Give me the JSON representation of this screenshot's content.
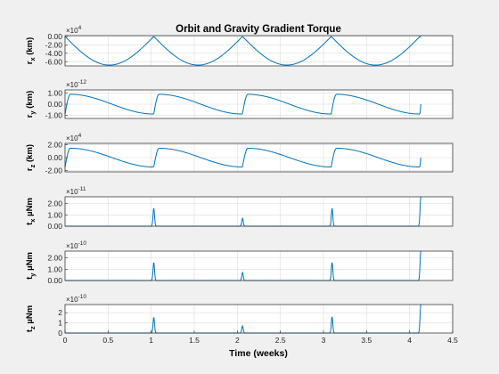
{
  "chart_data": {
    "title": "Orbit and Gravity Gradient Torque",
    "xlabel": "Time (weeks)",
    "x_ticks": [
      "0",
      "0.5",
      "1",
      "1.5",
      "2",
      "2.5",
      "3",
      "3.5",
      "4",
      "4.5"
    ],
    "xlim": [
      0,
      4.5
    ],
    "series_color": "#0072BD",
    "grid_color": "#dcdcdc",
    "subplots": [
      {
        "id": "rx",
        "type": "line",
        "ylabel_main": "r",
        "ylabel_sub": "x",
        "ylabel_unit": " (km)",
        "exponent_base": "×10",
        "exponent_power": "4",
        "ylim": [
          -7.0,
          0.2
        ],
        "yticks": [
          0,
          -2,
          -4,
          -6
        ],
        "ytick_labels": [
          "0.00",
          "-2.00",
          "-4.00",
          "-6.00"
        ],
        "curve": {
          "kind": "arcs",
          "period": 1.03,
          "xend": 4.13,
          "min": -6.8,
          "max": 0
        }
      },
      {
        "id": "ry",
        "type": "line",
        "ylabel_main": "r",
        "ylabel_sub": "y",
        "ylabel_unit": " (km)",
        "exponent_base": "×10",
        "exponent_power": "-12",
        "ylim": [
          -1.3,
          1.3
        ],
        "yticks": [
          1,
          0,
          -1
        ],
        "ytick_labels": [
          "1.00",
          "0.00",
          "-1.00"
        ],
        "curve": {
          "kind": "sawtooth",
          "period": 1.03,
          "xend": 4.13,
          "peak": 0.9,
          "trough": -0.9,
          "rise": 0.06,
          "end_value": 0
        }
      },
      {
        "id": "rz",
        "type": "line",
        "ylabel_main": "r",
        "ylabel_sub": "z",
        "ylabel_unit": " (km)",
        "exponent_base": "×10",
        "exponent_power": "4",
        "ylim": [
          -2.2,
          2.2
        ],
        "yticks": [
          2,
          0,
          -2
        ],
        "ytick_labels": [
          "2.00",
          "0.00",
          "-2.00"
        ],
        "curve": {
          "kind": "sawtooth",
          "period": 1.03,
          "xend": 4.13,
          "peak": 1.45,
          "trough": -1.45,
          "rise": 0.06,
          "end_value": 0
        }
      },
      {
        "id": "tx",
        "type": "line",
        "ylabel_main": "t",
        "ylabel_sub": "x",
        "ylabel_unit": " µNm",
        "exponent_base": "×10",
        "exponent_power": "-11",
        "ylim": [
          0,
          2.6
        ],
        "yticks": [
          0,
          1,
          2
        ],
        "ytick_labels": [
          "0.00",
          "1.00",
          "2.00"
        ],
        "curve": {
          "kind": "spikes",
          "xend": 4.13,
          "width": 0.012,
          "spikes": [
            [
              1.03,
              1.6
            ],
            [
              2.06,
              0.7
            ],
            [
              3.1,
              1.6
            ],
            [
              4.13,
              2.6
            ]
          ]
        }
      },
      {
        "id": "ty",
        "type": "line",
        "ylabel_main": "t",
        "ylabel_sub": "y",
        "ylabel_unit": " µNm",
        "exponent_base": "×10",
        "exponent_power": "-10",
        "ylim": [
          0,
          2.6
        ],
        "yticks": [
          0,
          1,
          2
        ],
        "ytick_labels": [
          "0.00",
          "1.00",
          "2.00"
        ],
        "curve": {
          "kind": "spikes",
          "xend": 4.13,
          "width": 0.012,
          "spikes": [
            [
              1.03,
              1.6
            ],
            [
              2.06,
              0.7
            ],
            [
              3.1,
              1.6
            ],
            [
              4.13,
              2.6
            ]
          ]
        }
      },
      {
        "id": "tz",
        "type": "line",
        "ylabel_main": "t",
        "ylabel_sub": "z",
        "ylabel_unit": " µNm",
        "exponent_base": "×10",
        "exponent_power": "-10",
        "ylim": [
          0,
          2.8
        ],
        "yticks": [
          0,
          1,
          2
        ],
        "ytick_labels": [
          "0",
          "1",
          "2"
        ],
        "curve": {
          "kind": "spikes",
          "xend": 4.13,
          "width": 0.012,
          "spikes": [
            [
              1.03,
              1.55
            ],
            [
              2.06,
              0.7
            ],
            [
              3.1,
              1.6
            ],
            [
              4.13,
              2.8
            ]
          ]
        }
      }
    ]
  }
}
